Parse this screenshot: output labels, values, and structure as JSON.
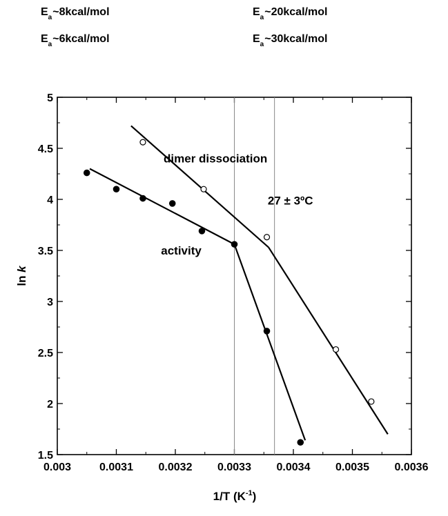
{
  "header": {
    "ea_top_left": {
      "sym": "E",
      "sub": "a",
      "val": "~8kcal/mol"
    },
    "ea_bottom_left": {
      "sym": "E",
      "sub": "a",
      "val": "~6kcal/mol"
    },
    "ea_top_right": {
      "sym": "E",
      "sub": "a",
      "val": "~20kcal/mol"
    },
    "ea_bottom_right": {
      "sym": "E",
      "sub": "a",
      "val": "~30kcal/mol"
    }
  },
  "chart_data": {
    "type": "scatter",
    "xlabel": "1/T (K",
    "xlabel_sup": "-1",
    "xlabel_tail": ")",
    "ylabel": "ln ",
    "ylabel_italic": "k",
    "xlim": [
      0.003,
      0.0036
    ],
    "ylim": [
      1.5,
      5
    ],
    "grid": false,
    "xticks": [
      "0.003",
      "0.0031",
      "0.0032",
      "0.0033",
      "0.0034",
      "0.0035",
      "0.0036"
    ],
    "xtick_values": [
      0.003,
      0.0031,
      0.0032,
      0.0033,
      0.0034,
      0.0035,
      0.0036
    ],
    "yticks": [
      "1.5",
      "2",
      "2.5",
      "3",
      "3.5",
      "4",
      "4.5",
      "5"
    ],
    "ytick_values": [
      1.5,
      2,
      2.5,
      3,
      3.5,
      4,
      4.5,
      5
    ],
    "series": [
      {
        "name": "activity",
        "marker": "filled",
        "x": [
          0.00305,
          0.0031,
          0.003145,
          0.003195,
          0.003245,
          0.0033,
          0.003355,
          0.003412
        ],
        "y": [
          4.26,
          4.1,
          4.01,
          3.96,
          3.69,
          3.56,
          2.71,
          1.62
        ],
        "fit_lines": [
          {
            "x": [
              0.003055,
              0.0033
            ],
            "y": [
              4.3,
              3.56
            ]
          },
          {
            "x": [
              0.0033,
              0.00342
            ],
            "y": [
              3.56,
              1.64
            ]
          }
        ]
      },
      {
        "name": "dimer dissociation",
        "marker": "open",
        "x": [
          0.003145,
          0.003248,
          0.003355,
          0.003472,
          0.003532
        ],
        "y": [
          4.56,
          4.1,
          3.63,
          2.53,
          2.02
        ],
        "fit_lines": [
          {
            "x": [
              0.003125,
              0.003358
            ],
            "y": [
              4.72,
              3.53
            ]
          },
          {
            "x": [
              0.003358,
              0.00356
            ],
            "y": [
              3.53,
              1.7
            ]
          }
        ]
      }
    ],
    "vlines_x": [
      0.0033,
      0.003368
    ],
    "annotations": [
      {
        "text": "dimer dissociation",
        "x": 0.003268,
        "y": 4.36
      },
      {
        "text": "27 ± 3ºC",
        "x": 0.003395,
        "y": 3.95
      },
      {
        "text": "activity",
        "x": 0.00321,
        "y": 3.46
      }
    ]
  }
}
